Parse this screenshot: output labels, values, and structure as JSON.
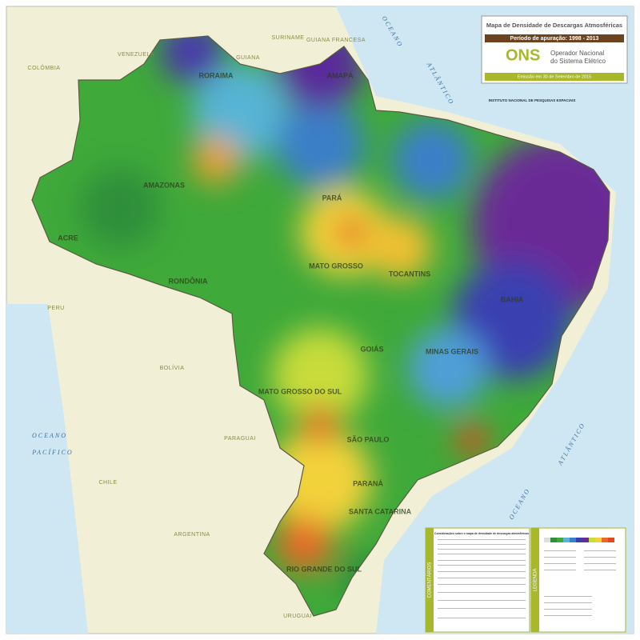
{
  "header": {
    "title": "Mapa de Densidade de Descargas Atmosféricas",
    "period": "Período de apuração: 1998 - 2013",
    "logo": "ONS",
    "organization": [
      "Operador Nacional",
      "do Sistema Elétrico"
    ],
    "issued": "Emissão em 30 de Setembro de 2015"
  },
  "institute": "INSTITUTO NACIONAL DE PESQUISAS ESPACIAIS",
  "countries": [
    "VENEZUELA",
    "COLÔMBIA",
    "SURINAME",
    "GUIANA",
    "GUIANA FRANCESA",
    "PERU",
    "BOLÍVIA",
    "PARAGUAI",
    "CHILE",
    "ARGENTINA",
    "URUGUAI"
  ],
  "oceans": [
    {
      "lines": [
        "OCEANO",
        "PACÍFICO"
      ]
    },
    {
      "lines": [
        "OCEANO",
        "ATLÂNTICO"
      ]
    },
    {
      "lines": [
        "OCEANO",
        "ATLÂNTICO"
      ]
    }
  ],
  "states": [
    "RORAIMA",
    "AMAPÁ",
    "AMAZONAS",
    "PARÁ",
    "ACRE",
    "RONDÔNIA",
    "MATO GROSSO",
    "TOCANTINS",
    "BAHIA",
    "GOIÁS",
    "MINAS GERAIS",
    "MATO GROSSO DO SUL",
    "SÃO PAULO",
    "PARANÁ",
    "SANTA CATARINA",
    "RIO GRANDE DO SUL"
  ],
  "panels": {
    "comments": "COMENTÁRIOS",
    "comments_title": "Considerações sobre o mapa de densidade de descargas atmosféricas",
    "legend": "LEGENDA"
  }
}
